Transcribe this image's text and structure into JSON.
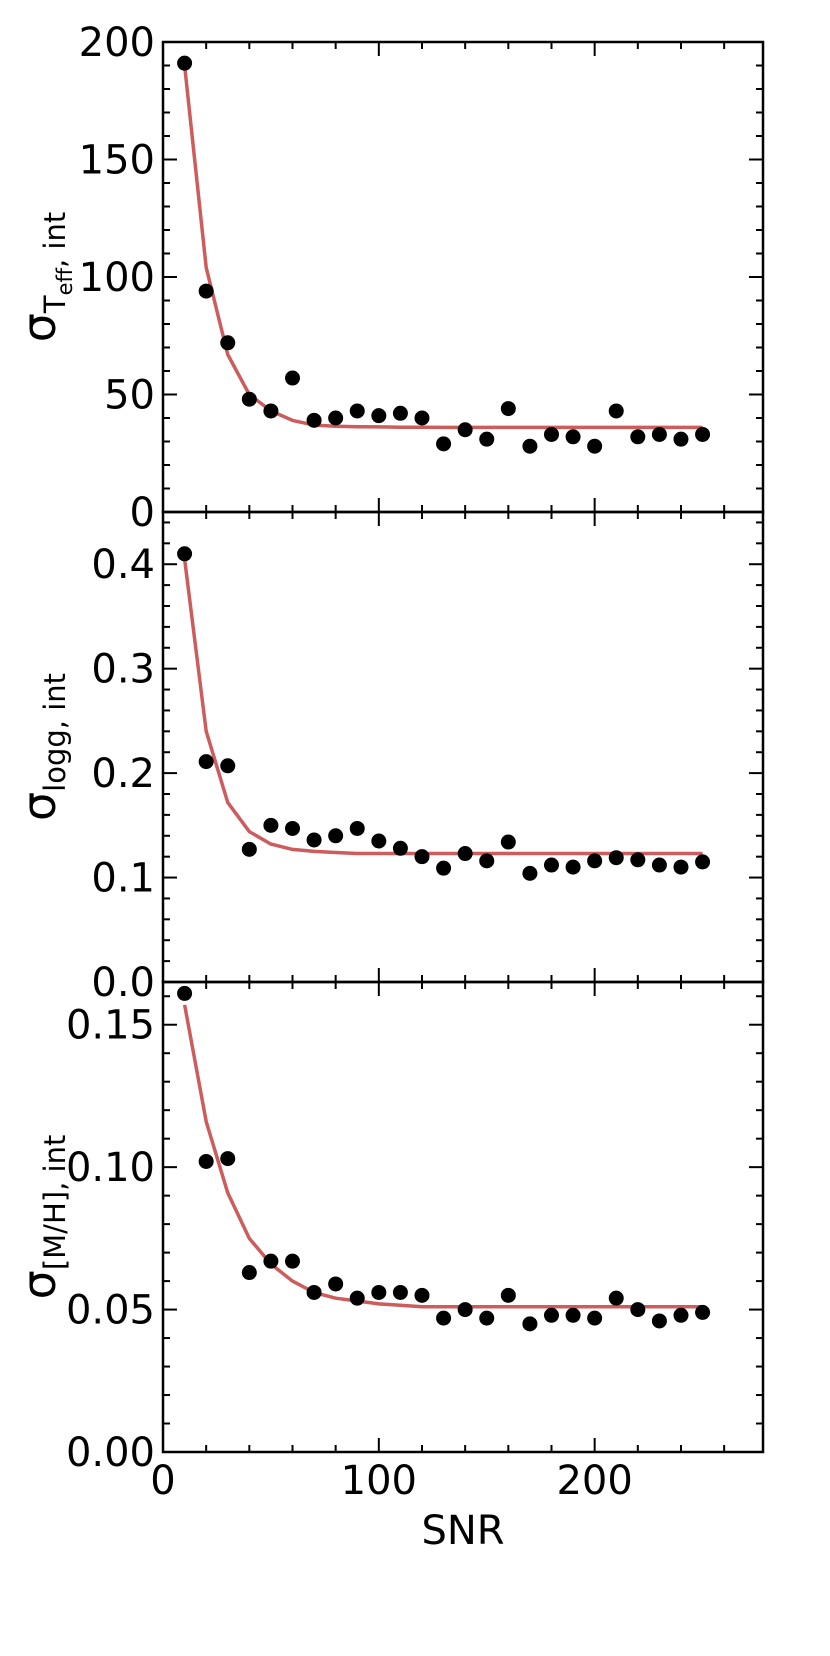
{
  "chart_data": {
    "type": "scatter",
    "x_axis": {
      "label": "SNR",
      "ticks": [
        0,
        100,
        200
      ],
      "range": [
        0,
        278
      ]
    },
    "colors": {
      "points": "#000000",
      "fit": "#cd5c5c",
      "frame": "#000000"
    },
    "x": [
      10,
      20,
      30,
      40,
      50,
      60,
      70,
      80,
      90,
      100,
      110,
      120,
      130,
      140,
      150,
      160,
      170,
      180,
      190,
      200,
      210,
      220,
      230,
      240,
      250
    ],
    "panels": [
      {
        "ylabel": {
          "base": "σ",
          "sub": "T",
          "subsub": "eff",
          "suffix": ", int"
        },
        "ylim": [
          0,
          200
        ],
        "yticks": [
          0,
          50,
          100,
          150,
          200
        ],
        "ytick_labels": [
          "0",
          "50",
          "100",
          "150",
          "200"
        ],
        "series": [
          {
            "type": "scatter",
            "values": [
              191,
              94,
              72,
              48,
              43,
              57,
              39,
              40,
              43,
              41,
              42,
              40,
              29,
              35,
              31,
              44,
              28,
              33,
              32,
              28,
              43,
              32,
              33,
              31,
              33
            ]
          },
          {
            "type": "line",
            "values": [
              190,
              104,
              67,
              50,
              43,
              39,
              37,
              36.5,
              36.3,
              36.2,
              36.1,
              36.1,
              36,
              36,
              36,
              36,
              36,
              36,
              36,
              36,
              36,
              36,
              36,
              36,
              36
            ]
          }
        ]
      },
      {
        "ylabel": {
          "base": "σ",
          "sub": "logg, int"
        },
        "ylim": [
          0,
          0.45
        ],
        "yticks": [
          0,
          0.1,
          0.2,
          0.3,
          0.4
        ],
        "ytick_labels": [
          "0.0",
          "0.1",
          "0.2",
          "0.3",
          "0.4"
        ],
        "series": [
          {
            "type": "scatter",
            "values": [
              0.41,
              0.211,
              0.207,
              0.127,
              0.15,
              0.147,
              0.136,
              0.14,
              0.147,
              0.135,
              0.128,
              0.12,
              0.109,
              0.123,
              0.116,
              0.134,
              0.104,
              0.112,
              0.11,
              0.116,
              0.119,
              0.117,
              0.112,
              0.11,
              0.115
            ]
          },
          {
            "type": "line",
            "values": [
              0.405,
              0.24,
              0.172,
              0.144,
              0.132,
              0.127,
              0.125,
              0.124,
              0.123,
              0.123,
              0.123,
              0.123,
              0.123,
              0.123,
              0.123,
              0.123,
              0.123,
              0.123,
              0.123,
              0.123,
              0.123,
              0.123,
              0.123,
              0.123,
              0.123
            ]
          }
        ]
      },
      {
        "ylabel": {
          "base": "σ",
          "sub": "[M/H], int"
        },
        "ylim": [
          0,
          0.165
        ],
        "yticks": [
          0,
          0.05,
          0.1,
          0.15
        ],
        "ytick_labels": [
          "0.00",
          "0.05",
          "0.10",
          "0.15"
        ],
        "series": [
          {
            "type": "scatter",
            "values": [
              0.161,
              0.102,
              0.103,
              0.063,
              0.067,
              0.067,
              0.056,
              0.059,
              0.054,
              0.056,
              0.056,
              0.055,
              0.047,
              0.05,
              0.047,
              0.055,
              0.045,
              0.048,
              0.048,
              0.047,
              0.054,
              0.05,
              0.046,
              0.048,
              0.049
            ]
          },
          {
            "type": "line",
            "values": [
              0.157,
              0.116,
              0.091,
              0.075,
              0.066,
              0.06,
              0.056,
              0.054,
              0.053,
              0.052,
              0.0515,
              0.051,
              0.051,
              0.051,
              0.051,
              0.051,
              0.051,
              0.051,
              0.051,
              0.051,
              0.051,
              0.051,
              0.051,
              0.051,
              0.051
            ]
          }
        ]
      }
    ]
  }
}
